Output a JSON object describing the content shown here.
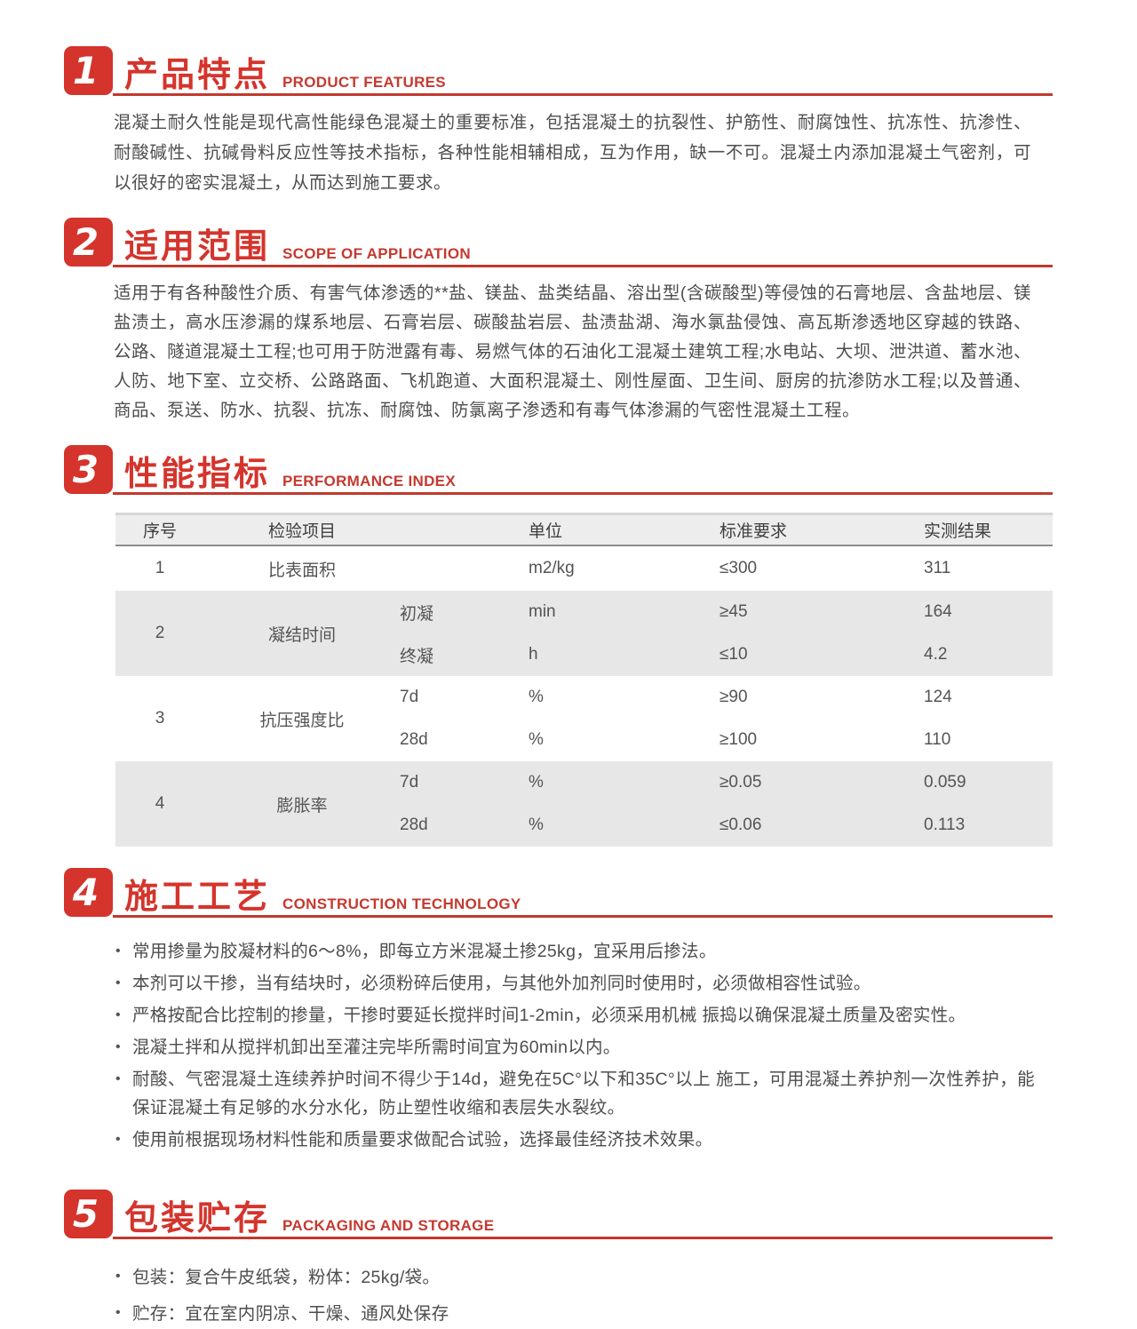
{
  "accent_color": "#d4342c",
  "table_gray_row_color": "#e7e7e7",
  "sections": [
    {
      "num": "1",
      "title_cn": "产品特点",
      "title_en": "PRODUCT FEATURES",
      "paragraph": "混凝土耐久性能是现代高性能绿色混凝土的重要标准，包括混凝土的抗裂性、护筋性、耐腐蚀性、抗冻性、抗渗性、耐酸碱性、抗碱骨料反应性等技术指标，各种性能相辅相成，互为作用，缺一不可。混凝土内添加混凝土气密剂，可以很好的密实混凝土，从而达到施工要求。"
    },
    {
      "num": "2",
      "title_cn": "适用范围",
      "title_en": "SCOPE OF APPLICATION",
      "paragraph": "适用于有各种酸性介质、有害气体渗透的**盐、镁盐、盐类结晶、溶出型(含碳酸型)等侵蚀的石膏地层、含盐地层、镁盐渍土，高水压渗漏的煤系地层、石膏岩层、碳酸盐岩层、盐渍盐湖、海水氯盐侵蚀、高瓦斯渗透地区穿越的铁路、公路、隧道混凝土工程;也可用于防泄露有毒、易燃气体的石油化工混凝土建筑工程;水电站、大坝、泄洪道、蓄水池、人防、地下室、立交桥、公路路面、飞机跑道、大面积混凝土、刚性屋面、卫生间、厨房的抗渗防水工程;以及普通、商品、泵送、防水、抗裂、抗冻、耐腐蚀、防氯离子渗透和有毒气体渗漏的气密性混凝土工程。"
    },
    {
      "num": "3",
      "title_cn": "性能指标",
      "title_en": "PERFORMANCE INDEX"
    },
    {
      "num": "4",
      "title_cn": "施工工艺",
      "title_en": "CONSTRUCTION TECHNOLOGY",
      "bullets": [
        "常用掺量为胶凝材料的6～8%，即每立方米混凝土掺25kg，宜采用后掺法。",
        "本剂可以干掺，当有结块时，必须粉碎后使用，与其他外加剂同时使用时，必须做相容性试验。",
        "严格按配合比控制的掺量，干掺时要延长搅拌时间1-2min，必须采用机械 振捣以确保混凝土质量及密实性。",
        "混凝土拌和从搅拌机卸出至灌注完毕所需时间宜为60min以内。",
        "耐酸、气密混凝土连续养护时间不得少于14d，避免在5C°以下和35C°以上 施工，可用混凝土养护剂一次性养护，能保证混凝土有足够的水分水化，防止塑性收缩和表层失水裂纹。",
        "使用前根据现场材料性能和质量要求做配合试验，选择最佳经济技术效果。"
      ]
    },
    {
      "num": "5",
      "title_cn": "包装贮存",
      "title_en": "PACKAGING AND STORAGE",
      "bullets": [
        "包装：复合牛皮纸袋，粉体：25kg/袋。",
        "贮存：宜在室内阴凉、干燥、通风处保存"
      ]
    }
  ],
  "table": {
    "headers": {
      "no": "序号",
      "item": "检验项目",
      "unit": "单位",
      "standard": "标准要求",
      "result": "实测结果"
    },
    "rows": [
      {
        "no": "1",
        "item": "比表面积",
        "unit": "m2/kg",
        "standard": "≤300",
        "result": "311"
      },
      {
        "no": "2",
        "item": "凝结时间",
        "subs": [
          {
            "name": "初凝",
            "unit": "min",
            "standard": "≥45",
            "result": "164"
          },
          {
            "name": "终凝",
            "unit": "h",
            "standard": "≤10",
            "result": "4.2"
          }
        ]
      },
      {
        "no": "3",
        "item": "抗压强度比",
        "subs": [
          {
            "name": "7d",
            "unit": "%",
            "standard": "≥90",
            "result": "124"
          },
          {
            "name": "28d",
            "unit": "%",
            "standard": "≥100",
            "result": "110"
          }
        ]
      },
      {
        "no": "4",
        "item": "膨胀率",
        "subs": [
          {
            "name": "7d",
            "unit": "%",
            "standard": "≥0.05",
            "result": "0.059"
          },
          {
            "name": "28d",
            "unit": "%",
            "standard": "≤0.06",
            "result": "0.113"
          }
        ]
      }
    ]
  }
}
